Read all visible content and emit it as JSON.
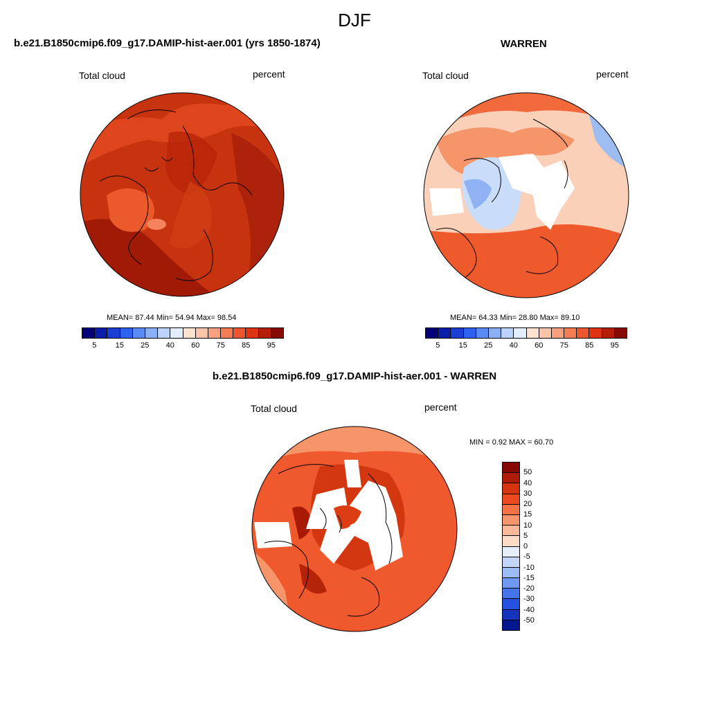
{
  "figure": {
    "title": "DJF"
  },
  "panel1": {
    "title": "b.e21.B1850cmip6.f09_g17.DAMIP-hist-aer.001 (yrs 1850-1874)",
    "left_label": "Total cloud",
    "right_label": "percent",
    "stats": "MEAN=  87.44  Min=  54.94  Max=  98.54",
    "fill_color": "#c2300f"
  },
  "panel2": {
    "title": "WARREN",
    "left_label": "Total cloud",
    "right_label": "percent",
    "stats": "MEAN=  64.33  Min=  28.80  Max=  89.10",
    "fill_color": "#f59a72"
  },
  "panel3": {
    "title": "b.e21.B1850cmip6.f09_g17.DAMIP-hist-aer.001 - WARREN",
    "left_label": "Total cloud",
    "right_label": "percent",
    "stats": "MIN =   0.92 MAX =  60.70",
    "fill_color": "#f0582e"
  },
  "colorbar_h": {
    "colors": [
      "#03007a",
      "#0a1ea8",
      "#1b3fd6",
      "#2e62ee",
      "#5a8af4",
      "#8cb0f7",
      "#bdd3fa",
      "#e3eefc",
      "#fde2cf",
      "#fbc3a8",
      "#f9a07e",
      "#f57b52",
      "#ee5630",
      "#dd3413",
      "#b51f0a",
      "#870b03"
    ],
    "tick_labels": [
      "5",
      "15",
      "25",
      "40",
      "60",
      "75",
      "85",
      "95"
    ]
  },
  "colorbar_v": {
    "colors": [
      "#850704",
      "#ad1c06",
      "#d5330f",
      "#ed4a20",
      "#f57242",
      "#f7966c",
      "#fab898",
      "#fcdcc4",
      "#e5eefa",
      "#c2d6fa",
      "#9bbcf7",
      "#6e98f1",
      "#4473ea",
      "#2551de",
      "#1434bd",
      "#05178e"
    ],
    "tick_labels": [
      "50",
      "40",
      "30",
      "20",
      "15",
      "10",
      "5",
      "0",
      "-5",
      "-10",
      "-15",
      "-20",
      "-30",
      "-40",
      "-50"
    ]
  },
  "icons": {
    "map1": "polar-map-icon",
    "map2": "polar-map-icon",
    "map3": "polar-map-icon"
  }
}
